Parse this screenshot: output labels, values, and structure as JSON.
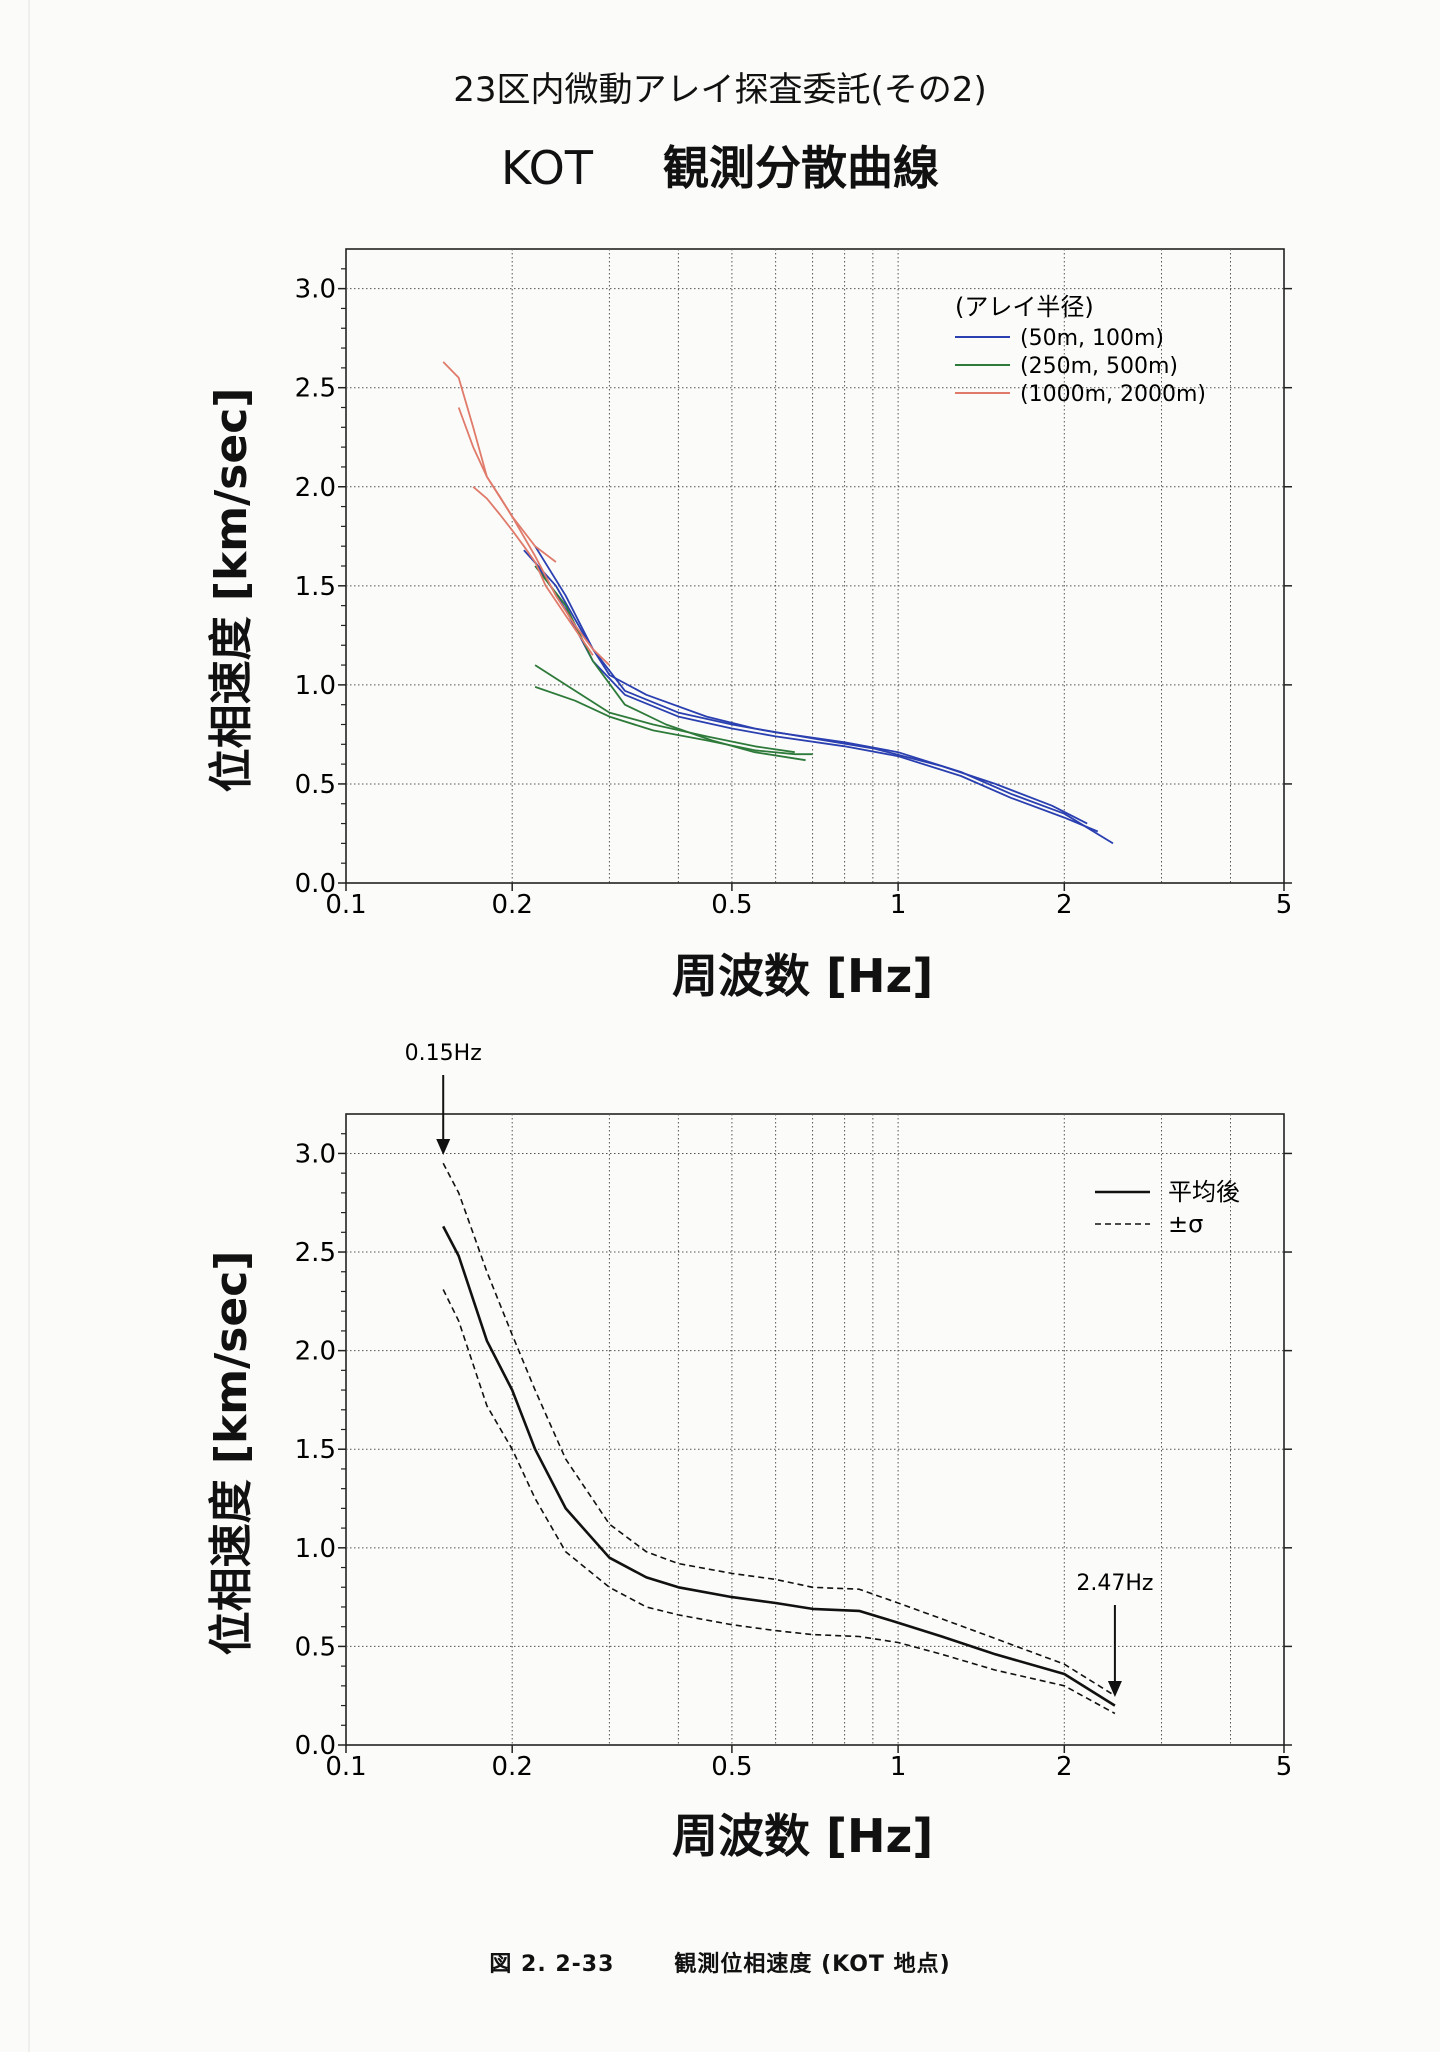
{
  "title_line1": "23区内微動アレイ探査委託(その2)",
  "title_site": "KOT",
  "title_line2": "観測分散曲線",
  "caption_fig": "図 2. 2-33",
  "caption_text": "観測位相速度 (KOT 地点)",
  "chart_data": [
    {
      "type": "line",
      "xscale": "log",
      "xlim": [
        0.1,
        5
      ],
      "ylim": [
        0,
        3.2
      ],
      "xticks": [
        "0.1",
        "0.2",
        "0.5",
        "1",
        "2",
        "5"
      ],
      "yticks": [
        "0.0",
        "0.5",
        "1.0",
        "1.5",
        "2.0",
        "2.5",
        "3.0"
      ],
      "xlabel": "周波数 [Hz]",
      "ylabel": "位相速度 [km/sec]",
      "legend_title": "(アレイ半径)",
      "legend_position": "top-right",
      "series": [
        {
          "name": "(50m, 100m)",
          "color": "#2a3fb0",
          "lines": [
            {
              "x": [
                0.22,
                0.25,
                0.28,
                0.32,
                0.4,
                0.5,
                0.6,
                0.8,
                1.0,
                1.3,
                1.6,
                2.0,
                2.45
              ],
              "y": [
                1.7,
                1.45,
                1.18,
                0.97,
                0.86,
                0.8,
                0.76,
                0.71,
                0.66,
                0.56,
                0.45,
                0.35,
                0.2
              ]
            },
            {
              "x": [
                0.22,
                0.25,
                0.28,
                0.32,
                0.4,
                0.5,
                0.6,
                0.8,
                1.0,
                1.3,
                1.6,
                2.0,
                2.3
              ],
              "y": [
                1.62,
                1.38,
                1.12,
                0.95,
                0.84,
                0.78,
                0.74,
                0.69,
                0.64,
                0.54,
                0.43,
                0.33,
                0.26
              ]
            },
            {
              "x": [
                0.21,
                0.24,
                0.27,
                0.3,
                0.35,
                0.45,
                0.55,
                0.7,
                0.9,
                1.2,
                1.5,
                1.9,
                2.2
              ],
              "y": [
                1.68,
                1.5,
                1.25,
                1.05,
                0.95,
                0.84,
                0.78,
                0.73,
                0.68,
                0.59,
                0.5,
                0.39,
                0.3
              ]
            }
          ]
        },
        {
          "name": "(250m, 500m)",
          "color": "#2e7a3a",
          "lines": [
            {
              "x": [
                0.22,
                0.26,
                0.3,
                0.36,
                0.45,
                0.55,
                0.65
              ],
              "y": [
                1.1,
                0.97,
                0.86,
                0.8,
                0.74,
                0.69,
                0.66
              ]
            },
            {
              "x": [
                0.22,
                0.26,
                0.3,
                0.36,
                0.45,
                0.55,
                0.65,
                0.7
              ],
              "y": [
                0.99,
                0.92,
                0.84,
                0.77,
                0.72,
                0.67,
                0.65,
                0.65
              ]
            },
            {
              "x": [
                0.22,
                0.25,
                0.28,
                0.32,
                0.38,
                0.46,
                0.55,
                0.68
              ],
              "y": [
                1.6,
                1.4,
                1.12,
                0.9,
                0.8,
                0.72,
                0.66,
                0.62
              ]
            }
          ]
        },
        {
          "name": "(1000m, 2000m)",
          "color": "#e07a6a",
          "lines": [
            {
              "x": [
                0.15,
                0.16,
                0.17,
                0.18,
                0.2,
                0.22,
                0.24,
                0.26,
                0.28,
                0.3
              ],
              "y": [
                2.63,
                2.55,
                2.3,
                2.05,
                1.85,
                1.65,
                1.45,
                1.3,
                1.18,
                1.1
              ]
            },
            {
              "x": [
                0.16,
                0.17,
                0.18,
                0.19,
                0.2,
                0.22,
                0.24
              ],
              "y": [
                2.4,
                2.2,
                2.05,
                1.95,
                1.85,
                1.7,
                1.62
              ]
            },
            {
              "x": [
                0.17,
                0.18,
                0.19,
                0.2,
                0.21,
                0.22,
                0.23,
                0.25,
                0.28
              ],
              "y": [
                2.0,
                1.94,
                1.86,
                1.78,
                1.7,
                1.62,
                1.5,
                1.35,
                1.15
              ]
            }
          ]
        }
      ]
    },
    {
      "type": "line",
      "xscale": "log",
      "xlim": [
        0.1,
        5
      ],
      "ylim": [
        0,
        3.2
      ],
      "xticks": [
        "0.1",
        "0.2",
        "0.5",
        "1",
        "2",
        "5"
      ],
      "yticks": [
        "0.0",
        "0.5",
        "1.0",
        "1.5",
        "2.0",
        "2.5",
        "3.0"
      ],
      "xlabel": "周波数 [Hz]",
      "ylabel": "位相速度 [km/sec]",
      "legend_position": "top-right",
      "annotations": [
        {
          "text": "0.15Hz",
          "x": 0.15
        },
        {
          "text": "2.47Hz",
          "x": 2.47
        }
      ],
      "series": [
        {
          "name": "平均後",
          "style": "solid",
          "x": [
            0.15,
            0.16,
            0.18,
            0.2,
            0.22,
            0.25,
            0.3,
            0.35,
            0.4,
            0.5,
            0.6,
            0.7,
            0.85,
            1.0,
            1.2,
            1.5,
            2.0,
            2.47
          ],
          "y": [
            2.63,
            2.48,
            2.05,
            1.8,
            1.5,
            1.2,
            0.95,
            0.85,
            0.8,
            0.75,
            0.72,
            0.69,
            0.68,
            0.62,
            0.55,
            0.46,
            0.36,
            0.2
          ]
        },
        {
          "name": "±σ",
          "style": "dashed",
          "x": [
            0.15,
            0.16,
            0.18,
            0.2,
            0.22,
            0.25,
            0.3,
            0.35,
            0.4,
            0.5,
            0.6,
            0.7,
            0.85,
            1.0,
            1.2,
            1.5,
            2.0,
            2.47
          ],
          "y": [
            2.95,
            2.8,
            2.4,
            2.08,
            1.8,
            1.45,
            1.12,
            0.98,
            0.92,
            0.87,
            0.84,
            0.8,
            0.79,
            0.72,
            0.64,
            0.54,
            0.41,
            0.25
          ]
        },
        {
          "name": "",
          "style": "dashed",
          "x": [
            0.15,
            0.16,
            0.18,
            0.2,
            0.22,
            0.25,
            0.3,
            0.35,
            0.4,
            0.5,
            0.6,
            0.7,
            0.85,
            1.0,
            1.2,
            1.5,
            2.0,
            2.47
          ],
          "y": [
            2.31,
            2.15,
            1.72,
            1.5,
            1.25,
            0.98,
            0.8,
            0.7,
            0.66,
            0.61,
            0.58,
            0.56,
            0.55,
            0.52,
            0.46,
            0.38,
            0.3,
            0.16
          ]
        }
      ]
    }
  ]
}
